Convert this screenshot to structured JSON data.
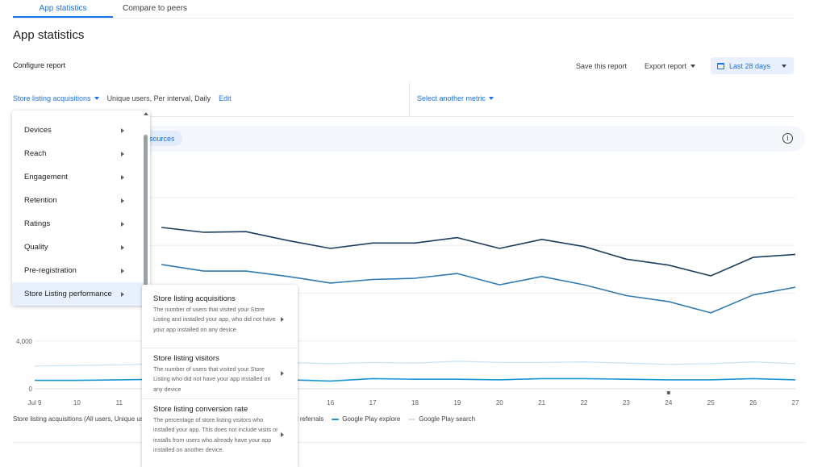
{
  "tabs": [
    {
      "label": "App statistics",
      "active": true
    },
    {
      "label": "Compare to peers",
      "active": false
    }
  ],
  "page_title": "App statistics",
  "configure_label": "Configure report",
  "toolbar": {
    "save_label": "Save this report",
    "export_label": "Export report",
    "date_label": "Last 28 days"
  },
  "metric": {
    "name": "Store listing acquisitions",
    "details": "Unique users, Per interval, Daily",
    "edit_label": "Edit",
    "select_other": "Select another metric"
  },
  "filter_chip": "sources",
  "menu": {
    "items": [
      {
        "label": "Devices"
      },
      {
        "label": "Reach"
      },
      {
        "label": "Engagement"
      },
      {
        "label": "Retention"
      },
      {
        "label": "Ratings"
      },
      {
        "label": "Quality"
      },
      {
        "label": "Pre-registration"
      },
      {
        "label": "Store Listing performance"
      }
    ]
  },
  "submenu": {
    "items": [
      {
        "title": "Store listing acquisitions",
        "description": "The number of users that visited your Store Listing and installed your app, who did not have your app installed on any device"
      },
      {
        "title": "Store listing visitors",
        "description": "The number of users that visited your Store Listing who did not have your app installed on any device"
      },
      {
        "title": "Store listing conversion rate",
        "description": "The percentage of store listing visitors who installed your app. This does not include visits or installs from users who already have your app installed on another device."
      }
    ]
  },
  "legend": {
    "prefix": "Store listing acquisitions (All users, Unique use",
    "partial": "and referrals",
    "items": [
      {
        "name": "Google Play explore",
        "color": "#1a95d6"
      },
      {
        "name": "Google Play search",
        "color": "#c9e3f6"
      }
    ]
  },
  "colors": {
    "accent": "#1a73e8",
    "series_dark": "#1c3e5e",
    "series_mid": "#2e7ab5",
    "series_light": "#c9e3f6",
    "series_explore": "#1a95d6"
  },
  "chart_data": {
    "type": "line",
    "x": [
      "Jul 9",
      "10",
      "11",
      "12",
      "13",
      "14",
      "15",
      "16",
      "17",
      "18",
      "19",
      "20",
      "21",
      "22",
      "23",
      "24",
      "25",
      "26",
      "27"
    ],
    "x_tick_labels": [
      "Jul 9",
      "10",
      "11",
      "16",
      "17",
      "18",
      "19",
      "20",
      "21",
      "22",
      "23",
      "24",
      "25",
      "26",
      "27"
    ],
    "y_tick_labels": [
      "0",
      "4,000"
    ],
    "ylim": [
      0,
      16000
    ],
    "grid": true,
    "series": [
      {
        "key": "dark",
        "values": [
          null,
          null,
          null,
          13500,
          13100,
          13150,
          12400,
          11750,
          12200,
          12200,
          12650,
          11750,
          12500,
          11900,
          10850,
          10350,
          9450,
          11000,
          11250
        ]
      },
      {
        "key": "mid",
        "values": [
          null,
          null,
          null,
          10400,
          9850,
          9850,
          9400,
          8850,
          9150,
          9250,
          9650,
          8700,
          9400,
          8700,
          7800,
          7300,
          6350,
          7850,
          8500
        ]
      },
      {
        "key": "light",
        "values": [
          1900,
          1950,
          2000,
          2100,
          2100,
          2100,
          2200,
          2100,
          2200,
          2150,
          2300,
          2200,
          2200,
          2250,
          2150,
          2050,
          2100,
          2250,
          2100
        ]
      },
      {
        "key": "explore",
        "values": [
          700,
          700,
          750,
          800,
          750,
          750,
          750,
          650,
          850,
          800,
          800,
          750,
          850,
          850,
          800,
          750,
          750,
          850,
          750
        ]
      }
    ]
  }
}
